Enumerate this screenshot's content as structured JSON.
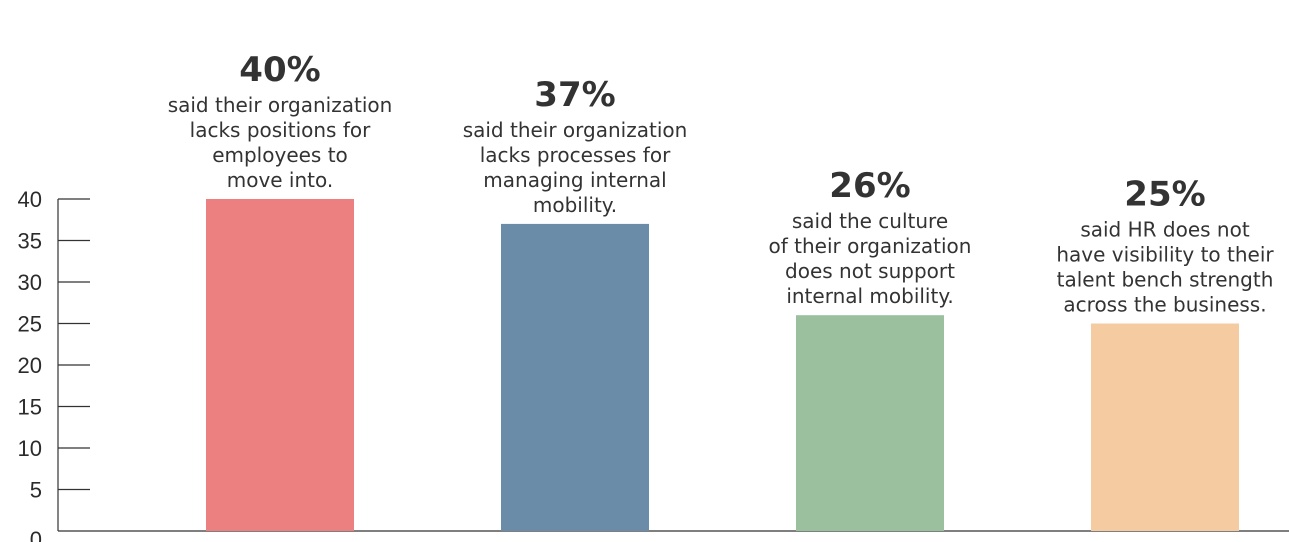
{
  "chart_data": {
    "type": "bar",
    "categories": [
      "said their organization lacks positions for employees to move into.",
      "said their organization lacks processes for managing internal mobility.",
      "said the culture of their organization does not support internal mobility.",
      "said HR does not have visibility to their talent bench strength across the business."
    ],
    "values": [
      40,
      37,
      26,
      25
    ],
    "data_labels": [
      "40%",
      "37%",
      "26%",
      "25%"
    ],
    "descriptions": [
      [
        "said their organization",
        "lacks positions for",
        "employees to",
        "move into."
      ],
      [
        "said their organization",
        "lacks processes for",
        "managing internal",
        "mobility."
      ],
      [
        "said the culture",
        "of their organization",
        "does not support",
        "internal mobility."
      ],
      [
        "said HR does not",
        "have visibility to their",
        "talent bench strength",
        "across the business."
      ]
    ],
    "colors": [
      "#ec7f7f",
      "#6a8ca8",
      "#9bc09e",
      "#f5cca1"
    ],
    "y_ticks": [
      0,
      5,
      10,
      15,
      20,
      25,
      30,
      35,
      40
    ],
    "ylim": [
      0,
      40
    ],
    "grid": false,
    "legend": "none",
    "title": "",
    "xlabel": "",
    "ylabel": ""
  }
}
